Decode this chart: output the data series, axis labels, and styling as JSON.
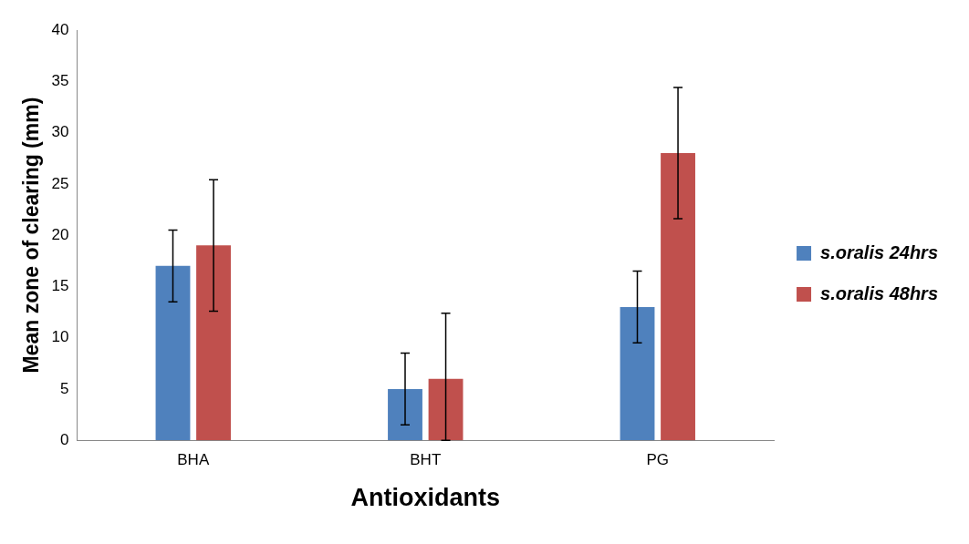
{
  "chart_data": {
    "type": "bar",
    "xlabel": "Antioxidants",
    "ylabel": "Mean zone of clearing (mm)",
    "categories": [
      "BHA",
      "BHT",
      "PG"
    ],
    "series": [
      {
        "name": "s.oralis 24hrs",
        "color": "#4f81bd",
        "values": [
          17,
          5,
          13
        ],
        "errors": [
          3.5,
          3.5,
          3.5
        ]
      },
      {
        "name": "s.oralis 48hrs",
        "color": "#c0504d",
        "values": [
          19,
          6,
          28
        ],
        "errors": [
          6.4,
          [
            0,
            12.4
          ],
          6.4
        ]
      }
    ],
    "ylim": [
      0,
      40
    ],
    "yticks": [
      0,
      5,
      10,
      15,
      20,
      25,
      30,
      35,
      40
    ],
    "grid": false,
    "legend": "right"
  }
}
